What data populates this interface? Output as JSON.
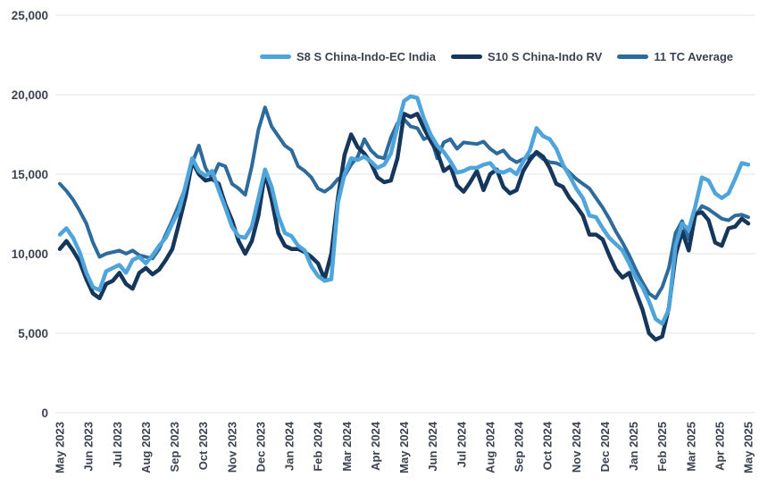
{
  "chart_data": {
    "type": "line",
    "title": "",
    "grid": "horizontal",
    "legend_position": "top",
    "ylim": [
      0,
      25000
    ],
    "y_tick_step": 5000,
    "y_tick_labels": [
      "0",
      "5,000",
      "10,000",
      "15,000",
      "20,000",
      "25,000"
    ],
    "x_labels": [
      "May 2023",
      "Jun 2023",
      "Jul 2023",
      "Aug 2023",
      "Sep 2023",
      "Oct 2023",
      "Nov 2023",
      "Dec 2023",
      "Jan 2024",
      "Feb 2024",
      "Mar 2024",
      "Apr 2024",
      "May 2024",
      "Jun 2024",
      "Jul 2024",
      "Aug 2024",
      "Sep 2024",
      "Oct 2024",
      "Nov 2024",
      "Dec 2024",
      "Jan 2025",
      "Feb 2025",
      "Mar 2025",
      "Apr 2025",
      "May 2025"
    ],
    "x_resolution": "weekly",
    "series": [
      {
        "name": "11 TC Average",
        "color": "#2E6B9D",
        "width": 4,
        "values": [
          14400,
          13950,
          13400,
          12700,
          11900,
          10700,
          9800,
          10000,
          10100,
          10200,
          10000,
          10200,
          9900,
          9800,
          9700,
          10300,
          11200,
          12100,
          13100,
          14200,
          15700,
          16800,
          15400,
          14700,
          15650,
          15500,
          14400,
          14100,
          13700,
          15500,
          17800,
          19200,
          18000,
          17400,
          16800,
          16500,
          15500,
          15200,
          14800,
          14100,
          13900,
          14200,
          14700,
          14900,
          15600,
          16100,
          17200,
          16500,
          16100,
          16000,
          17300,
          18200,
          18450,
          18000,
          17900,
          17200,
          17400,
          16000,
          17000,
          17200,
          16600,
          17000,
          16950,
          16900,
          17050,
          16600,
          16300,
          16500,
          16000,
          15750,
          15950,
          16100,
          16300,
          15950,
          15750,
          15700,
          15500,
          15100,
          14700,
          14400,
          14100,
          13500,
          12900,
          12200,
          11400,
          10700,
          9900,
          9000,
          8200,
          7500,
          7200,
          7900,
          9100,
          11300,
          12050,
          10900,
          12400,
          13000,
          12800,
          12500,
          12200,
          12100,
          12400,
          12450,
          12300
        ]
      },
      {
        "name": "S10 S China-Indo RV",
        "color": "#16365C",
        "width": 4.5,
        "values": [
          10300,
          10800,
          10200,
          9500,
          8400,
          7500,
          7200,
          8100,
          8300,
          8800,
          8100,
          7800,
          8800,
          9100,
          8700,
          9000,
          9600,
          10300,
          11900,
          13600,
          15800,
          15000,
          14600,
          14700,
          14400,
          13100,
          12100,
          10800,
          10000,
          10800,
          12400,
          15100,
          13400,
          11300,
          10500,
          10300,
          10300,
          10100,
          9800,
          9400,
          8400,
          10000,
          13500,
          16200,
          17500,
          16700,
          16300,
          15700,
          14800,
          14500,
          14600,
          16000,
          18800,
          18600,
          18800,
          17900,
          17100,
          16400,
          15200,
          15500,
          14300,
          13900,
          14500,
          15200,
          14000,
          15000,
          15300,
          14200,
          13800,
          14000,
          15200,
          15900,
          16400,
          16100,
          15400,
          14400,
          14200,
          13500,
          13000,
          12400,
          11200,
          11200,
          10900,
          9900,
          9000,
          8500,
          8800,
          7600,
          6500,
          5000,
          4600,
          4800,
          6600,
          9900,
          11400,
          10200,
          12500,
          12600,
          12100,
          10700,
          10500,
          11600,
          11700,
          12200,
          11900
        ]
      },
      {
        "name": "S8 S China-Indo-EC India",
        "color": "#4FA5DB",
        "width": 4.5,
        "values": [
          11200,
          11600,
          11000,
          10100,
          8800,
          7900,
          7700,
          8900,
          9100,
          9300,
          8800,
          9600,
          9800,
          9400,
          9900,
          10500,
          11000,
          11900,
          12700,
          14300,
          16000,
          15200,
          14900,
          15200,
          14000,
          12900,
          11700,
          11100,
          11000,
          11700,
          13500,
          15300,
          14200,
          12400,
          11300,
          11100,
          10500,
          10200,
          9200,
          8600,
          8300,
          8400,
          13200,
          15000,
          16000,
          15900,
          16100,
          15800,
          15400,
          15600,
          16300,
          18000,
          19600,
          19900,
          19800,
          18500,
          17500,
          16800,
          16400,
          15800,
          15100,
          15200,
          15400,
          15400,
          15600,
          15700,
          15200,
          15100,
          15300,
          15000,
          15800,
          16500,
          17900,
          17400,
          17200,
          16600,
          15600,
          14900,
          14100,
          13500,
          12400,
          12300,
          11600,
          11000,
          10600,
          10200,
          9400,
          8500,
          7900,
          7000,
          5900,
          5600,
          6500,
          10500,
          11900,
          11500,
          13000,
          14800,
          14600,
          13800,
          13500,
          13800,
          14700,
          15700,
          15600
        ]
      }
    ],
    "legend_order": [
      "S8 S China-Indo-EC India",
      "S10 S China-Indo RV",
      "11 TC Average"
    ]
  },
  "colors": {
    "axis_text": "#3C4350",
    "gridline": "#E8EAEC",
    "background": "#FFFFFF"
  }
}
